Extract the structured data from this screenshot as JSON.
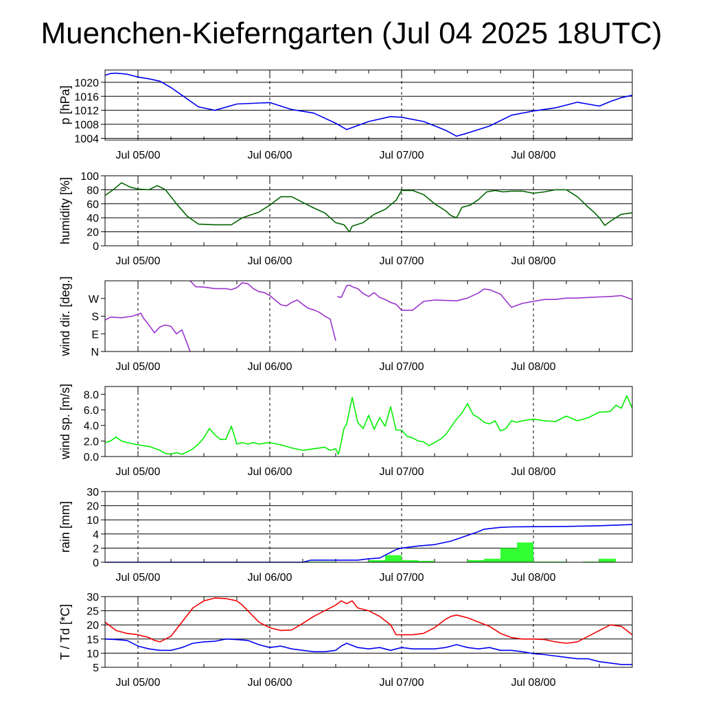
{
  "title": "Muenchen-Kieferngarten (Jul 04 2025 18UTC)",
  "chart_data": [
    {
      "type": "line",
      "name": "pressure",
      "ylabel": "p [hPa]",
      "ylim": [
        1003.5,
        1023.5
      ],
      "yticks": [
        "1004",
        "1008",
        "1012",
        "1016",
        "1020"
      ],
      "ytick_values": [
        1004,
        1008,
        1012,
        1016,
        1020
      ],
      "x_unit": "hours since Jul 04 18UTC",
      "xlim": [
        0,
        96
      ],
      "xticks": [
        "Jul 05/00",
        "Jul 06/00",
        "Jul 07/00",
        "Jul 08/00"
      ],
      "xtick_values": [
        6,
        30,
        54,
        78
      ],
      "grid": true,
      "series": [
        {
          "color": "#0000ee",
          "x": [
            0,
            1,
            2,
            4,
            6,
            8,
            10,
            12,
            14,
            17,
            20,
            24,
            30,
            34,
            38,
            42,
            44,
            48,
            52,
            54,
            58,
            62,
            64,
            66,
            70,
            74,
            78,
            82,
            86,
            90,
            92,
            94,
            96
          ],
          "y": [
            1022,
            1022.5,
            1022.6,
            1022.3,
            1021.5,
            1021,
            1020.3,
            1018.5,
            1016.3,
            1013,
            1012,
            1013.8,
            1014.2,
            1012.2,
            1011.2,
            1008.3,
            1006.5,
            1008.8,
            1010.2,
            1010,
            1008.8,
            1006.3,
            1004.6,
            1005.5,
            1007.5,
            1010.6,
            1011.8,
            1012.7,
            1014.3,
            1013.2,
            1014.5,
            1015.6,
            1016.3
          ]
        }
      ]
    },
    {
      "type": "line",
      "name": "humidity",
      "ylabel": "humidity [%]",
      "ylim": [
        0,
        100
      ],
      "yticks": [
        "0",
        "20",
        "40",
        "60",
        "80",
        "100"
      ],
      "ytick_values": [
        0,
        20,
        40,
        60,
        80,
        100
      ],
      "xlim": [
        0,
        96
      ],
      "xticks": [
        "Jul 05/00",
        "Jul 06/00",
        "Jul 07/00",
        "Jul 08/00"
      ],
      "xtick_values": [
        6,
        30,
        54,
        78
      ],
      "grid": true,
      "series": [
        {
          "color": "#006400",
          "x": [
            0,
            1.5,
            3,
            4.5,
            6,
            8,
            9.5,
            11,
            13,
            15,
            17,
            20,
            23,
            25,
            28,
            30,
            32,
            34,
            36,
            38,
            40,
            42,
            43.5,
            44.5,
            45,
            47,
            49,
            51,
            53,
            54,
            56,
            58,
            60,
            62,
            63,
            64,
            65,
            66.5,
            68,
            69.5,
            71,
            72.5,
            74,
            76,
            78,
            80,
            82,
            84,
            86,
            88,
            89,
            90,
            91,
            92,
            94,
            96
          ],
          "y": [
            72,
            80,
            90,
            84,
            81,
            80,
            86,
            80,
            60,
            42,
            31,
            30,
            30,
            40,
            48,
            58,
            70,
            70,
            62,
            54,
            47,
            33,
            30,
            20,
            28,
            33,
            45,
            52,
            65,
            79,
            79,
            73,
            60,
            50,
            43,
            40,
            55,
            58,
            66,
            77,
            79,
            77,
            78,
            78,
            75,
            77,
            80,
            80,
            70,
            55,
            48,
            40,
            29,
            35,
            45,
            47
          ]
        }
      ]
    },
    {
      "type": "line",
      "name": "wind direction",
      "ylabel": "wind dir. [deg.]",
      "ylim": [
        0,
        360
      ],
      "yticks": [
        "N",
        "E",
        "S",
        "W"
      ],
      "ytick_values": [
        0,
        90,
        180,
        270
      ],
      "xlim": [
        0,
        96
      ],
      "xticks": [
        "Jul 05/00",
        "Jul 06/00",
        "Jul 07/00",
        "Jul 08/00"
      ],
      "xtick_values": [
        6,
        30,
        54,
        78
      ],
      "grid": false,
      "series": [
        {
          "color": "#9932cc",
          "segments": [
            {
              "x": [
                0,
                1,
                3,
                5,
                6.5,
                7,
                8,
                9,
                10,
                11,
                12,
                13,
                14,
                15.5
              ],
              "y": [
                160,
                175,
                172,
                180,
                195,
                170,
                135,
                95,
                125,
                135,
                128,
                90,
                110,
                0
              ]
            },
            {
              "x": [
                15.5,
                16.5,
                18,
                20,
                22,
                23,
                24,
                25,
                26,
                27,
                28,
                29,
                30,
                32,
                33,
                34,
                35,
                36,
                37,
                38,
                39,
                40,
                41,
                42
              ],
              "y": [
                360,
                330,
                328,
                320,
                320,
                315,
                325,
                350,
                345,
                320,
                305,
                300,
                285,
                238,
                232,
                250,
                262,
                240,
                220,
                212,
                200,
                180,
                165,
                55
              ]
            },
            {
              "x": [
                42.3,
                43,
                44,
                44.5,
                45,
                46,
                47,
                48,
                49,
                50,
                51,
                52,
                53,
                54,
                56,
                58,
                60,
                62,
                64,
                66,
                68,
                69,
                70,
                72,
                74,
                76,
                78,
                80,
                82,
                84,
                86,
                88,
                90,
                92,
                94,
                96
              ],
              "y": [
                280,
                275,
                335,
                338,
                330,
                320,
                295,
                280,
                300,
                275,
                265,
                250,
                240,
                210,
                210,
                255,
                262,
                260,
                258,
                272,
                298,
                318,
                315,
                292,
                225,
                245,
                255,
                265,
                265,
                272,
                272,
                275,
                278,
                280,
                285,
                265
              ]
            }
          ]
        }
      ]
    },
    {
      "type": "line",
      "name": "wind speed",
      "ylabel": "wind sp. [m/s]",
      "ylim": [
        0,
        9
      ],
      "yticks": [
        "0.0",
        "2.0",
        "4.0",
        "6.0",
        "8.0"
      ],
      "ytick_values": [
        0,
        2,
        4,
        6,
        8
      ],
      "xlim": [
        0,
        96
      ],
      "xticks": [
        "Jul 05/00",
        "Jul 06/00",
        "Jul 07/00",
        "Jul 08/00"
      ],
      "xtick_values": [
        6,
        30,
        54,
        78
      ],
      "grid": false,
      "series": [
        {
          "color": "#00ee00",
          "x": [
            0,
            1,
            2,
            3,
            4,
            6,
            8,
            10,
            11,
            12,
            13,
            14,
            15,
            16,
            17,
            18,
            19,
            20,
            21,
            22,
            23,
            24,
            25,
            26,
            27,
            28,
            29,
            30,
            32,
            34,
            36,
            38,
            40,
            41,
            42,
            42.5,
            43,
            43.5,
            44,
            45,
            46,
            47,
            48,
            49,
            50,
            51,
            52,
            53,
            54,
            55,
            56,
            57,
            58,
            59,
            60,
            61,
            62,
            63,
            64,
            65,
            66,
            67,
            68,
            69,
            70,
            71,
            72,
            73,
            74,
            75,
            76,
            78,
            80,
            82,
            84,
            86,
            88,
            90,
            92,
            93,
            94,
            95,
            96
          ],
          "y": [
            1.8,
            2.0,
            2.5,
            2.0,
            1.8,
            1.5,
            1.3,
            0.8,
            0.4,
            0.3,
            0.5,
            0.3,
            0.6,
            1.0,
            1.6,
            2.4,
            3.6,
            2.8,
            2.2,
            2.2,
            3.9,
            1.6,
            1.8,
            1.6,
            1.8,
            1.6,
            1.7,
            1.8,
            1.5,
            1.1,
            0.8,
            1.0,
            1.2,
            0.8,
            1.0,
            0.3,
            1.8,
            3.6,
            4.2,
            7.6,
            4.4,
            3.6,
            5.3,
            3.5,
            5.0,
            3.9,
            6.4,
            3.4,
            3.4,
            2.6,
            2.4,
            2.0,
            1.9,
            1.4,
            1.8,
            2.2,
            2.8,
            3.8,
            4.8,
            5.6,
            6.8,
            5.4,
            5.0,
            4.4,
            4.2,
            4.6,
            3.3,
            3.6,
            4.6,
            4.4,
            4.6,
            4.8,
            4.6,
            4.5,
            5.2,
            4.6,
            5.0,
            5.7,
            5.8,
            6.6,
            6.2,
            7.8,
            6.2
          ]
        }
      ]
    },
    {
      "type": "bar",
      "name": "rain",
      "ylabel": "rain [mm]",
      "ylim": [
        0,
        30
      ],
      "yticks": [
        "0",
        "2",
        "4",
        "10",
        "20",
        "30"
      ],
      "ytick_values": [
        0,
        2,
        4,
        10,
        20,
        30
      ],
      "scale": "custom nonlinear (0, 2, 4, 10, 20, 30 evenly spaced)",
      "xlim": [
        0,
        96
      ],
      "xticks": [
        "Jul 05/00",
        "Jul 06/00",
        "Jul 07/00",
        "Jul 08/00"
      ],
      "xtick_values": [
        6,
        30,
        54,
        78
      ],
      "grid": true,
      "bars": {
        "color": "#33ff33",
        "x_start": [
          36,
          39,
          48,
          51,
          54,
          57,
          60,
          63,
          66,
          69,
          72,
          75,
          78,
          81,
          84,
          87,
          90,
          93
        ],
        "values": [
          0.1,
          0.1,
          0.3,
          1.0,
          0.3,
          0.2,
          0.0,
          0.0,
          0.3,
          0.5,
          2.0,
          2.8,
          0.1,
          0.1,
          0.0,
          0.1,
          0.5,
          0.0
        ]
      },
      "series": [
        {
          "color": "#0000ee",
          "x": [
            0,
            36,
            37.5,
            46,
            48,
            50,
            51,
            53,
            54,
            57,
            60,
            63,
            66,
            68,
            69,
            70,
            72,
            74,
            78,
            84,
            90,
            96
          ],
          "y": [
            0,
            0,
            0.3,
            0.3,
            0.5,
            0.6,
            1.0,
            1.8,
            2.0,
            2.3,
            2.5,
            3.0,
            3.8,
            5.0,
            6.0,
            6.3,
            6.8,
            7.0,
            7.1,
            7.2,
            7.5,
            8.0
          ]
        }
      ]
    },
    {
      "type": "line",
      "name": "temperature and dew point",
      "ylabel": "T / Td [*C]",
      "ylim": [
        5,
        30
      ],
      "yticks": [
        "5",
        "10",
        "15",
        "20",
        "25",
        "30"
      ],
      "ytick_values": [
        5,
        10,
        15,
        20,
        25,
        30
      ],
      "xlim": [
        0,
        96
      ],
      "xticks": [
        "Jul 05/00",
        "Jul 06/00",
        "Jul 07/00",
        "Jul 08/00"
      ],
      "xtick_values": [
        6,
        30,
        54,
        78
      ],
      "grid": true,
      "series": [
        {
          "color": "#ee0000",
          "x": [
            0,
            2,
            4,
            6,
            8,
            9,
            10,
            12,
            14,
            16,
            18,
            20,
            22,
            24,
            25,
            26,
            28,
            30,
            32,
            34,
            36,
            38,
            40,
            42,
            43,
            44,
            45,
            46,
            48,
            50,
            52,
            53,
            54,
            56,
            58,
            60,
            62,
            63,
            64,
            66,
            68,
            70,
            72,
            74,
            76,
            78,
            80,
            82,
            84,
            86,
            88,
            90,
            92,
            94,
            96
          ],
          "y": [
            21,
            18,
            17,
            16.5,
            15.5,
            14.5,
            14,
            16,
            21,
            26,
            28.5,
            29.5,
            29.3,
            28.5,
            27,
            25,
            21,
            19,
            18,
            18.2,
            20.5,
            23,
            25,
            27,
            28.5,
            27.5,
            28.5,
            26,
            25,
            23,
            20,
            16.5,
            16.5,
            16.5,
            17,
            19,
            22,
            23,
            23.5,
            22.5,
            21,
            19.5,
            17,
            15.5,
            15,
            15,
            14.8,
            14,
            13.5,
            14,
            16,
            18,
            20,
            19.5,
            16.5
          ]
        },
        {
          "color": "#0000ee",
          "x": [
            0,
            2,
            4,
            6,
            8,
            10,
            12,
            14,
            16,
            18,
            20,
            22,
            24,
            26,
            28,
            30,
            32,
            34,
            36,
            38,
            40,
            42,
            43,
            44,
            46,
            48,
            50,
            52,
            54,
            56,
            58,
            60,
            62,
            63,
            64,
            66,
            68,
            70,
            72,
            74,
            76,
            78,
            80,
            82,
            84,
            86,
            88,
            90,
            92,
            94,
            96
          ],
          "y": [
            15,
            14.8,
            14.5,
            12.5,
            11.5,
            11,
            11,
            12,
            13.5,
            14,
            14.2,
            15,
            14.8,
            14.5,
            13,
            12,
            12.5,
            11.5,
            11,
            10.5,
            10.5,
            11,
            12.5,
            13.5,
            12,
            11.5,
            12,
            11,
            12,
            11.5,
            11.5,
            11.5,
            12,
            12.5,
            13,
            12,
            11.5,
            12,
            11,
            11,
            10.5,
            9.8,
            9.5,
            9,
            8.5,
            8,
            8,
            7,
            6.5,
            6,
            6
          ]
        }
      ]
    }
  ]
}
